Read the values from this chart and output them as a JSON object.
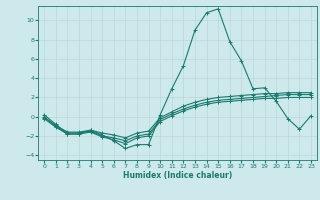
{
  "xlabel": "Humidex (Indice chaleur)",
  "background_color": "#cee9ec",
  "grid_color": "#b8d8dc",
  "line_color": "#1a7a6e",
  "xlim": [
    -0.5,
    23.5
  ],
  "ylim": [
    -4.5,
    11.5
  ],
  "xticks": [
    0,
    1,
    2,
    3,
    4,
    5,
    6,
    7,
    8,
    9,
    10,
    11,
    12,
    13,
    14,
    15,
    16,
    17,
    18,
    19,
    20,
    21,
    22,
    23
  ],
  "yticks": [
    -4,
    -2,
    0,
    2,
    4,
    6,
    8,
    10
  ],
  "series": [
    [
      0.2,
      -0.8,
      -1.8,
      -1.8,
      -1.4,
      -1.9,
      -2.5,
      -3.3,
      -2.9,
      -2.9,
      0.2,
      2.9,
      5.3,
      9.0,
      10.8,
      11.2,
      7.8,
      5.8,
      2.9,
      3.0,
      1.6,
      -0.2,
      -1.3,
      0.1
    ],
    [
      0.0,
      -1.0,
      -1.7,
      -1.7,
      -1.5,
      -2.0,
      -2.2,
      -2.5,
      -2.0,
      -1.8,
      -0.3,
      0.3,
      0.8,
      1.2,
      1.5,
      1.7,
      1.8,
      1.9,
      2.0,
      2.1,
      2.2,
      2.3,
      2.3,
      2.3
    ],
    [
      -0.1,
      -0.9,
      -1.6,
      -1.6,
      -1.4,
      -1.7,
      -1.9,
      -2.2,
      -1.7,
      -1.5,
      -0.1,
      0.5,
      1.1,
      1.5,
      1.8,
      2.0,
      2.1,
      2.2,
      2.3,
      2.4,
      2.4,
      2.5,
      2.5,
      2.5
    ],
    [
      -0.2,
      -1.1,
      -1.8,
      -1.8,
      -1.6,
      -2.1,
      -2.4,
      -2.8,
      -2.2,
      -2.0,
      -0.5,
      0.1,
      0.6,
      1.0,
      1.3,
      1.5,
      1.6,
      1.7,
      1.8,
      1.9,
      1.9,
      2.0,
      2.0,
      2.0
    ]
  ]
}
